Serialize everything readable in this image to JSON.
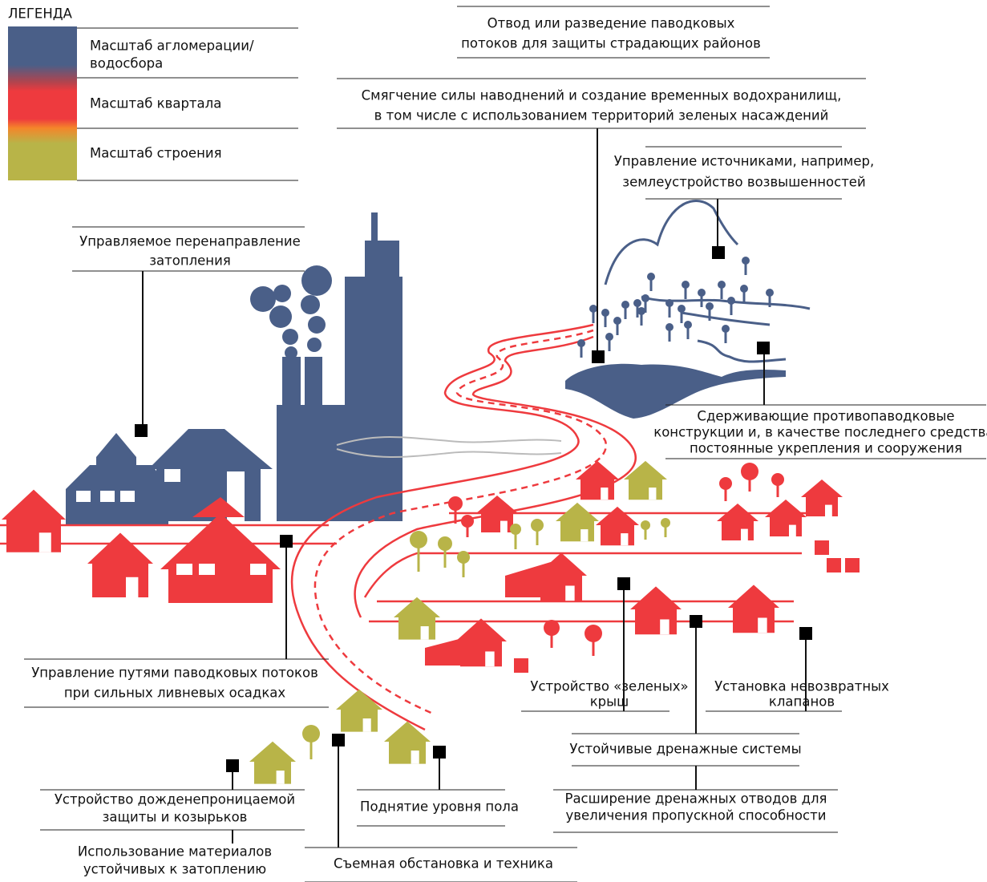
{
  "legend": {
    "title": "ЛЕГЕНДА",
    "items": [
      [
        "Масштаб агломерации/",
        "водосбора"
      ],
      [
        "Масштаб квартала"
      ],
      [
        "Масштаб строения"
      ]
    ]
  },
  "labels": [
    [
      "Отвод или разведение паводковых",
      "потоков для защиты страдающих районов"
    ],
    [
      "Смягчение силы наводнений и создание временных водохранилищ,",
      "в том числе с использованием территорий зеленых насаждений"
    ],
    [
      "Управление источниками, например,",
      "землеустройство возвышенностей"
    ],
    [
      "Управляемое перенаправление",
      "затопления"
    ],
    [
      "Сдерживающие противопаводковые",
      "конструкции и, в качестве последнего средства,",
      "постоянные укрепления и сооружения"
    ],
    [
      "Управление путями паводковых потоков",
      "при сильных ливневых осадках"
    ],
    [
      "Устройство «зеленых»",
      "крыш"
    ],
    [
      "Установка невозвратных",
      "клапанов"
    ],
    [
      "Устойчивые дренажные системы"
    ],
    [
      "Расширение дренажных отводов для",
      "увеличения пропускной способности"
    ],
    [
      "Устройство дожденепроницаемой",
      "защиты и козырьков"
    ],
    [
      "Поднятие уровня пола"
    ],
    [
      "Использование материалов",
      "устойчивых к затоплению"
    ],
    [
      "Съемная обстановка и техника"
    ]
  ]
}
